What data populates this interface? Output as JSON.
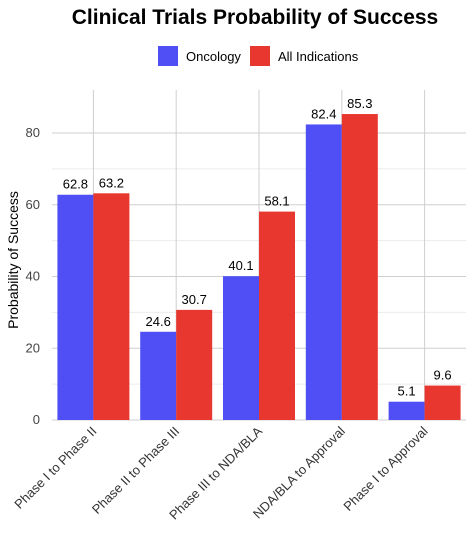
{
  "chart_data": {
    "type": "bar",
    "title": "Clinical Trials Probability of Success",
    "ylabel": "Probability of Success",
    "xlabel": "",
    "categories": [
      "Phase I to Phase II",
      "Phase II to Phase III",
      "Phase III to NDA/BLA",
      "NDA/BLA to Approval",
      "Phase I to Approval"
    ],
    "series": [
      {
        "name": "Oncology",
        "color": "#4f4ff5",
        "values": [
          62.8,
          24.6,
          40.1,
          82.4,
          5.1
        ]
      },
      {
        "name": "All Indications",
        "color": "#e8372e",
        "values": [
          63.2,
          30.7,
          58.1,
          85.3,
          9.6
        ]
      }
    ],
    "ylim": [
      0,
      92
    ],
    "yticks": [
      0,
      20,
      40,
      60,
      80
    ],
    "grid": true,
    "legend_position": "top"
  }
}
